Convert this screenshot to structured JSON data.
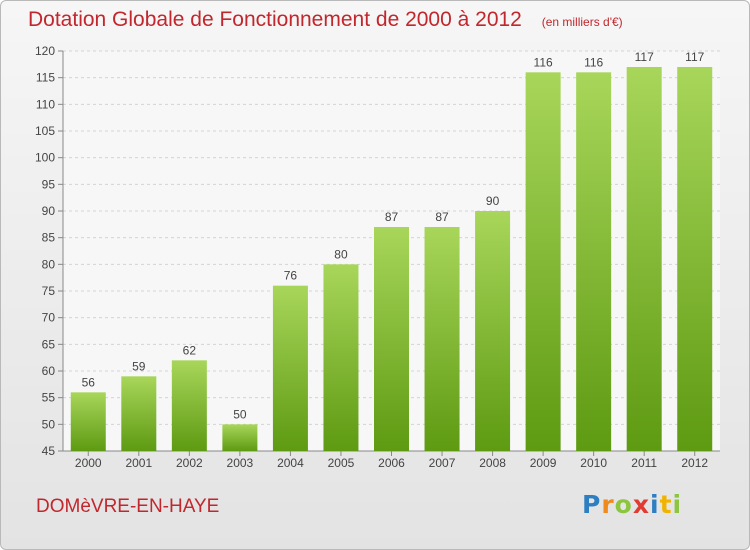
{
  "chart_data": {
    "type": "bar",
    "title": "Dotation Globale de Fonctionnement de 2000 à 2012",
    "subtitle": "(en milliers d'€)",
    "categories": [
      "2000",
      "2001",
      "2002",
      "2003",
      "2004",
      "2005",
      "2006",
      "2007",
      "2008",
      "2009",
      "2010",
      "2011",
      "2012"
    ],
    "values": [
      56,
      59,
      62,
      50,
      76,
      80,
      87,
      87,
      90,
      116,
      116,
      117,
      117
    ],
    "ylim": [
      45,
      120
    ],
    "yticks": [
      45,
      50,
      55,
      60,
      65,
      70,
      75,
      80,
      85,
      90,
      95,
      100,
      105,
      110,
      115,
      120
    ],
    "grid": true,
    "colors": {
      "bar_light": "#a8d65a",
      "bar_dark": "#5e9a12",
      "title": "#c1272d"
    }
  },
  "commune": "DOMèVRE-EN-HAYE",
  "logo": {
    "letters": [
      {
        "ch": "P",
        "color": "#2e7fc2"
      },
      {
        "ch": "r",
        "color": "#f08a1c"
      },
      {
        "ch": "o",
        "color": "#8cc63f"
      },
      {
        "ch": "x",
        "color": "#e03c31"
      },
      {
        "ch": "i",
        "color": "#2e7fc2"
      },
      {
        "ch": "t",
        "color": "#f0b400"
      },
      {
        "ch": "i",
        "color": "#8cc63f"
      }
    ]
  }
}
